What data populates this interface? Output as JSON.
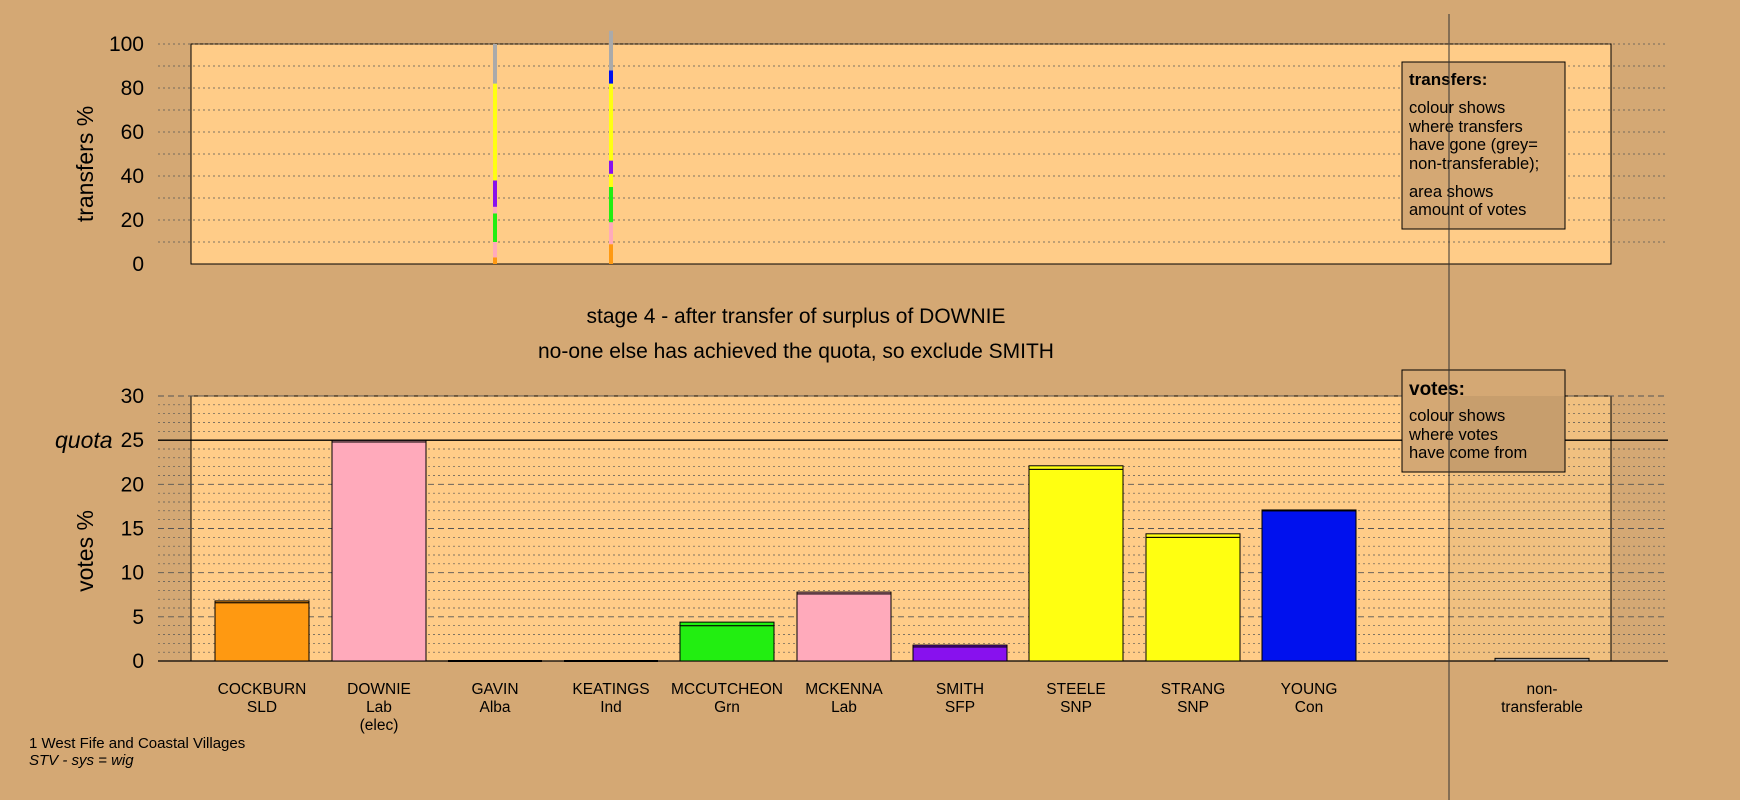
{
  "colors": {
    "background": "#d4a874",
    "plot_background": "#ffcc88",
    "orange": "#ff9911",
    "pink": "#ffaabb",
    "green": "#22ee11",
    "purple": "#8811ee",
    "yellow": "#ffff11",
    "blue": "#0011ee",
    "grey": "#aaaaaa"
  },
  "title_lines": [
    "stage 4 - after transfer of surplus of DOWNIE",
    "no-one else has achieved the quota, so exclude SMITH"
  ],
  "footer": {
    "ward": "1 West Fife and Coastal Villages",
    "system": "STV - sys = wig"
  },
  "chart_data": [
    {
      "type": "bar",
      "name": "transfers",
      "ylabel": "transfers %",
      "ylim": [
        0,
        100
      ],
      "yticks": [
        0,
        20,
        40,
        60,
        80,
        100
      ],
      "grid": true,
      "legend": {
        "title": "transfers:",
        "lines": [
          "colour shows",
          "where transfers",
          "have gone (grey=",
          "non-transferable);",
          "",
          "area shows",
          "amount of votes"
        ],
        "placement": "top-right"
      },
      "columns": [
        {
          "from": "GAVIN",
          "segments": [
            {
              "color": "orange",
              "value": 3
            },
            {
              "color": "pink",
              "value": 7
            },
            {
              "color": "green",
              "value": 13
            },
            {
              "color": "pink",
              "value": 3
            },
            {
              "color": "purple",
              "value": 12
            },
            {
              "color": "yellow",
              "value": 44
            },
            {
              "color": "grey",
              "value": 18
            }
          ]
        },
        {
          "from": "KEATINGS",
          "segments": [
            {
              "color": "orange",
              "value": 9
            },
            {
              "color": "pink",
              "value": 10
            },
            {
              "color": "green",
              "value": 16
            },
            {
              "color": "yellow",
              "value": 6
            },
            {
              "color": "purple",
              "value": 6
            },
            {
              "color": "yellow",
              "value": 35
            },
            {
              "color": "blue",
              "value": 6
            },
            {
              "color": "grey",
              "value": 18
            }
          ]
        }
      ]
    },
    {
      "type": "bar",
      "name": "votes",
      "ylabel": "votes %",
      "ylim": [
        0,
        30
      ],
      "yticks": [
        0,
        5,
        10,
        15,
        20,
        25,
        30
      ],
      "quota": 25,
      "quota_label": "quota",
      "grid": true,
      "legend": {
        "title": "votes:",
        "lines": [
          "colour shows",
          "where votes",
          "have come from"
        ],
        "placement": "top-right"
      },
      "categories": [
        {
          "name": "COCKBURN",
          "party": "SLD",
          "extra": ""
        },
        {
          "name": "DOWNIE",
          "party": "Lab",
          "extra": "(elec)"
        },
        {
          "name": "GAVIN",
          "party": "Alba",
          "extra": ""
        },
        {
          "name": "KEATINGS",
          "party": "Ind",
          "extra": ""
        },
        {
          "name": "MCCUTCHEON",
          "party": "Grn",
          "extra": ""
        },
        {
          "name": "MCKENNA",
          "party": "Lab",
          "extra": ""
        },
        {
          "name": "SMITH",
          "party": "SFP",
          "extra": ""
        },
        {
          "name": "STEELE",
          "party": "SNP",
          "extra": ""
        },
        {
          "name": "STRANG",
          "party": "SNP",
          "extra": ""
        },
        {
          "name": "YOUNG",
          "party": "Con",
          "extra": ""
        },
        {
          "name": "non-",
          "party": "transferable",
          "extra": ""
        }
      ],
      "bars": [
        {
          "color": "orange",
          "values": [
            6.6,
            0.2
          ]
        },
        {
          "color": "pink",
          "values": [
            24.8,
            0.2
          ]
        },
        {
          "color": "grey",
          "values": [
            0
          ]
        },
        {
          "color": "grey",
          "values": [
            0
          ]
        },
        {
          "color": "green",
          "values": [
            4.0,
            0.4
          ]
        },
        {
          "color": "pink",
          "values": [
            7.6,
            0.2
          ]
        },
        {
          "color": "purple",
          "values": [
            1.6,
            0.2
          ]
        },
        {
          "color": "yellow",
          "values": [
            21.7,
            0.4
          ]
        },
        {
          "color": "yellow",
          "values": [
            14.0,
            0.4
          ]
        },
        {
          "color": "blue",
          "values": [
            17.0,
            0.1
          ]
        },
        {
          "color": "grey",
          "values": [
            0.3
          ]
        }
      ]
    }
  ]
}
